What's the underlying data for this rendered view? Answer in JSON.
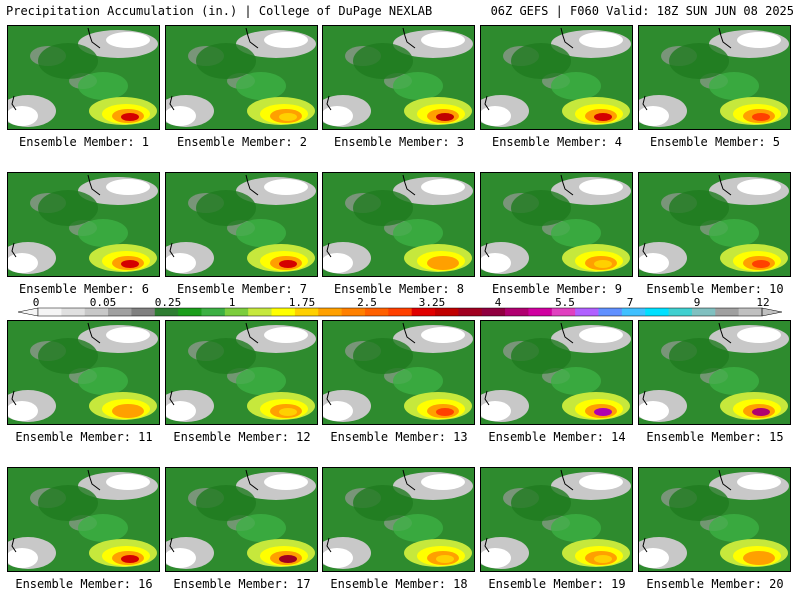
{
  "header": {
    "left": "Precipitation Accumulation (in.) | College of DuPage NEXLAB",
    "right": "06Z GEFS | F060 Valid: 18Z SUN JUN 08 2025"
  },
  "members": [
    {
      "label": "Ensemble Member: 1",
      "peak": "#d40000"
    },
    {
      "label": "Ensemble Member: 2",
      "peak": "#ffd000"
    },
    {
      "label": "Ensemble Member: 3",
      "peak": "#c00000"
    },
    {
      "label": "Ensemble Member: 4",
      "peak": "#d40000"
    },
    {
      "label": "Ensemble Member: 5",
      "peak": "#ff4000"
    },
    {
      "label": "Ensemble Member: 6",
      "peak": "#d40000"
    },
    {
      "label": "Ensemble Member: 7",
      "peak": "#d40000"
    },
    {
      "label": "Ensemble Member: 8",
      "peak": "#ffa000"
    },
    {
      "label": "Ensemble Member: 9",
      "peak": "#ffd000"
    },
    {
      "label": "Ensemble Member: 10",
      "peak": "#ff4000"
    },
    {
      "label": "Ensemble Member: 11",
      "peak": "#ffa000"
    },
    {
      "label": "Ensemble Member: 12",
      "peak": "#ffd000"
    },
    {
      "label": "Ensemble Member: 13",
      "peak": "#ff4000"
    },
    {
      "label": "Ensemble Member: 14",
      "peak": "#b000b0"
    },
    {
      "label": "Ensemble Member: 15",
      "peak": "#b00070"
    },
    {
      "label": "Ensemble Member: 16",
      "peak": "#d40000"
    },
    {
      "label": "Ensemble Member: 17",
      "peak": "#a00020"
    },
    {
      "label": "Ensemble Member: 18",
      "peak": "#ffd000"
    },
    {
      "label": "Ensemble Member: 19",
      "peak": "#ffd000"
    },
    {
      "label": "Ensemble Member: 20",
      "peak": "#ffa000"
    }
  ],
  "colorbar": {
    "ticks": [
      "0",
      "0.05",
      "0.25",
      "1",
      "1.75",
      "2.5",
      "3.25",
      "4",
      "5.5",
      "7",
      "9",
      "12"
    ],
    "colors": [
      "#f5f5f5",
      "#e0e0e0",
      "#c8c8c8",
      "#a0a0a0",
      "#808080",
      "#2e7d32",
      "#1b9e1b",
      "#3cb043",
      "#7ccd3c",
      "#c6e83c",
      "#ffff00",
      "#ffd000",
      "#ffa000",
      "#ff8000",
      "#ff6000",
      "#ff4000",
      "#e00000",
      "#c00000",
      "#a00020",
      "#900040",
      "#b00070",
      "#d000a0",
      "#e040c0",
      "#b060ff",
      "#6090ff",
      "#40c0ff",
      "#00e0ff",
      "#40d0d0",
      "#80c0c0",
      "#a0a0a0",
      "#c0c0c0"
    ]
  }
}
